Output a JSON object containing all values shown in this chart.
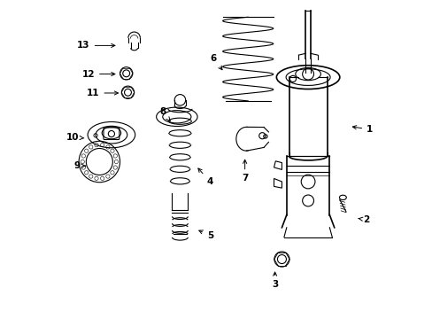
{
  "bg_color": "#ffffff",
  "fig_width": 4.89,
  "fig_height": 3.6,
  "dpi": 100,
  "label_positions": {
    "1": [
      0.985,
      0.595,
      0.92,
      0.605
    ],
    "2": [
      0.975,
      0.31,
      0.94,
      0.315
    ],
    "3": [
      0.685,
      0.105,
      0.685,
      0.155
    ],
    "4": [
      0.48,
      0.43,
      0.435,
      0.48
    ],
    "5": [
      0.48,
      0.26,
      0.435,
      0.28
    ],
    "6": [
      0.49,
      0.82,
      0.525,
      0.775
    ],
    "7": [
      0.59,
      0.44,
      0.59,
      0.51
    ],
    "8": [
      0.33,
      0.65,
      0.355,
      0.62
    ],
    "9": [
      0.06,
      0.48,
      0.095,
      0.48
    ],
    "10": [
      0.045,
      0.57,
      0.09,
      0.567
    ],
    "11": [
      0.11,
      0.71,
      0.2,
      0.71
    ],
    "12": [
      0.095,
      0.77,
      0.19,
      0.77
    ],
    "13": [
      0.08,
      0.86,
      0.19,
      0.86
    ]
  }
}
